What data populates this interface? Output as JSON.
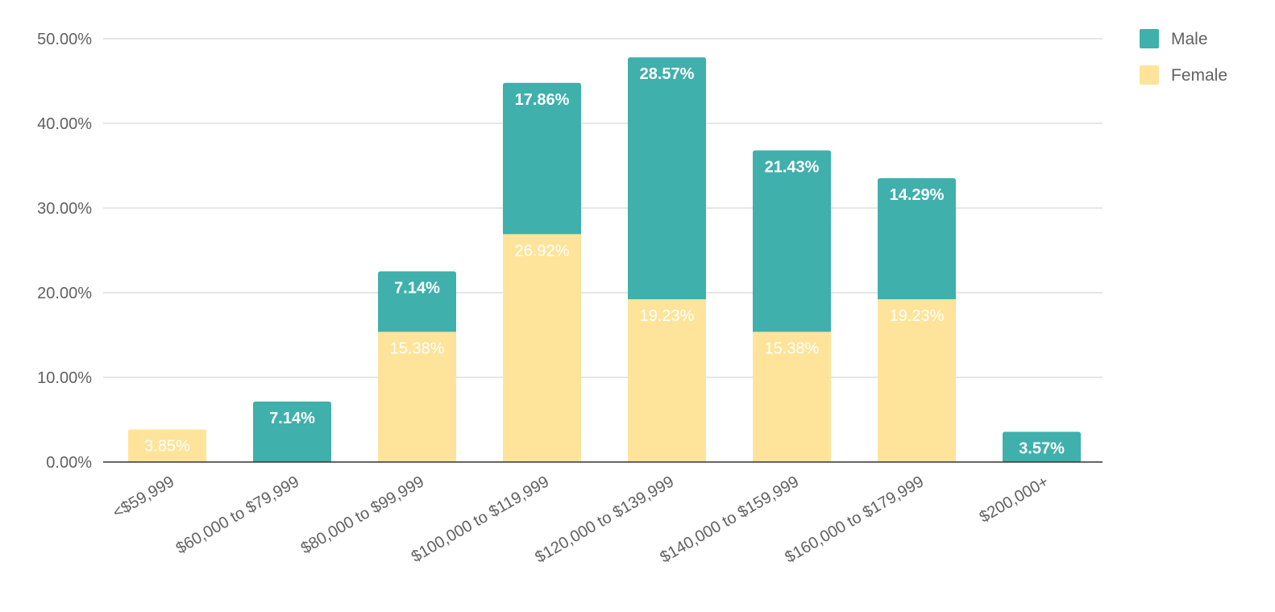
{
  "chart_data": {
    "type": "bar",
    "stacked": true,
    "title": "",
    "xlabel": "",
    "ylabel": "",
    "ylim": [
      0,
      50
    ],
    "yticks": [
      "0.00%",
      "10.00%",
      "20.00%",
      "30.00%",
      "40.00%",
      "50.00%"
    ],
    "grid": true,
    "legend_position": "top-right",
    "categories": [
      "<$59,999",
      "$60,000 to $79,999",
      "$80,000 to $99,999",
      "$100,000 to $119,999",
      "$120,000 to $139,999",
      "$140,000 to $159,999",
      "$160,000 to $179,999",
      "$200,000+"
    ],
    "series": [
      {
        "name": "Female",
        "color": "#fde49a",
        "values": [
          3.85,
          null,
          15.38,
          26.92,
          19.23,
          15.38,
          19.23,
          null
        ],
        "labels": [
          "3.85%",
          "",
          "15.38%",
          "26.92%",
          "19.23%",
          "15.38%",
          "19.23%",
          ""
        ]
      },
      {
        "name": "Male",
        "color": "#3fb0ac",
        "values": [
          null,
          7.14,
          7.14,
          17.86,
          28.57,
          21.43,
          14.29,
          3.57
        ],
        "labels": [
          "",
          "7.14%",
          "7.14%",
          "17.86%",
          "28.57%",
          "21.43%",
          "14.29%",
          "3.57%"
        ]
      }
    ],
    "legend": [
      {
        "name": "Male",
        "color": "#3fb0ac"
      },
      {
        "name": "Female",
        "color": "#fde49a"
      }
    ],
    "colors": {
      "axis": "#333333",
      "grid": "#cccccc",
      "text": "#616161",
      "label": "#ffffff"
    }
  }
}
